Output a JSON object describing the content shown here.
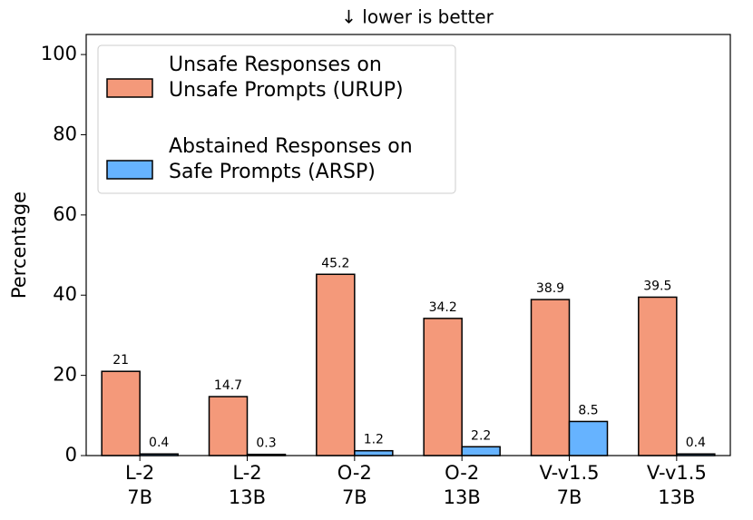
{
  "chart_data": {
    "type": "bar",
    "title": "↓  lower is better",
    "y_label": "Percentage",
    "categories": [
      [
        "L-2",
        "7B"
      ],
      [
        "L-2",
        "13B"
      ],
      [
        "O-2",
        "7B"
      ],
      [
        "O-2",
        "13B"
      ],
      [
        "V-v1.5",
        "7B"
      ],
      [
        "V-v1.5",
        "13B"
      ]
    ],
    "series": [
      {
        "name": [
          "Unsafe Responses on",
          "Unsafe Prompts (URUP)"
        ],
        "color": "#f4997a",
        "values": [
          21,
          14.7,
          45.2,
          34.2,
          38.9,
          39.5
        ]
      },
      {
        "name": [
          "Abstained Responses on",
          "Safe Prompts (ARSP)"
        ],
        "color": "#66b3ff",
        "values": [
          0.4,
          0.3,
          1.2,
          2.2,
          8.5,
          0.4
        ]
      }
    ],
    "ylim": [
      0,
      105
    ],
    "yticks": [
      0,
      20,
      40,
      60,
      80,
      100
    ],
    "grid": false,
    "legend": "upper left"
  }
}
